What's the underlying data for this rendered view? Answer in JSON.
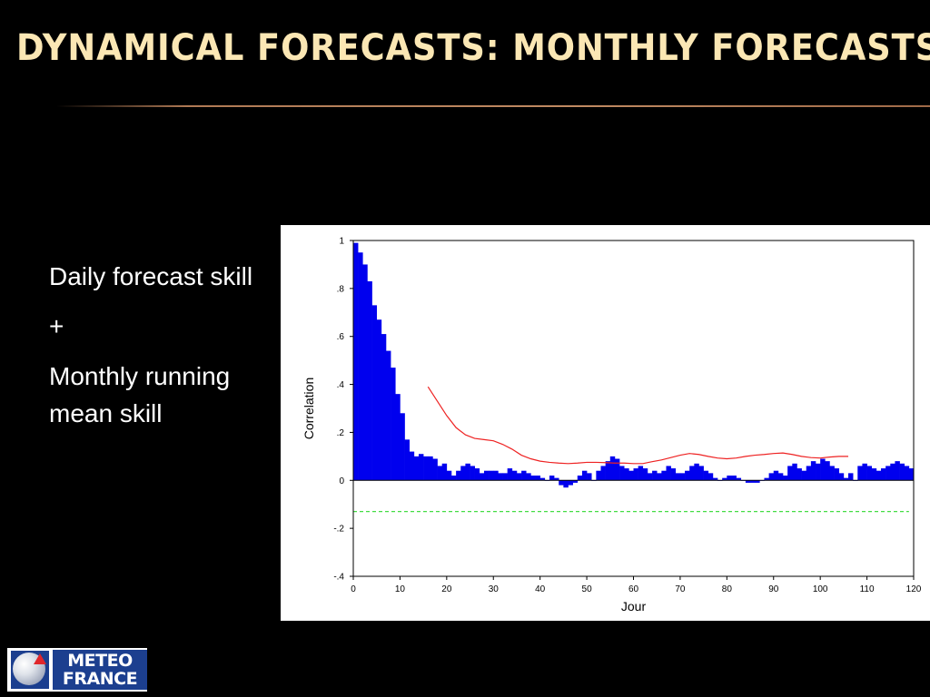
{
  "slide": {
    "title": "Dynamical forecasts: monthly forecasts",
    "bullets": [
      "Daily forecast skill",
      "+",
      "Monthly running mean skill"
    ]
  },
  "logo": {
    "line1": "METEO",
    "line2": "FRANCE",
    "colors": {
      "blue": "#1c3f8f",
      "red": "#e0262b"
    }
  },
  "chart_data": {
    "type": "bar",
    "xlabel": "Jour",
    "ylabel": "Correlation",
    "xlim": [
      0,
      120
    ],
    "ylim": [
      -0.4,
      1
    ],
    "xticks": [
      0,
      10,
      20,
      30,
      40,
      50,
      60,
      70,
      80,
      90,
      100,
      110,
      120
    ],
    "xtick_labels": [
      "0",
      "10",
      "20",
      "30",
      "40",
      "50",
      "60",
      "70",
      "80",
      "90",
      "100",
      "110",
      "120"
    ],
    "yticks": [
      -0.4,
      -0.2,
      0,
      0.2,
      0.4,
      0.6,
      0.8,
      1
    ],
    "ytick_labels": [
      "-.4",
      "-.2",
      "0",
      ".2",
      ".4",
      ".6",
      ".8",
      "1"
    ],
    "grid": false,
    "series": [
      {
        "type": "bar",
        "color": "#0000ee",
        "x": [
          1,
          2,
          3,
          4,
          5,
          6,
          7,
          8,
          9,
          10,
          11,
          12,
          13,
          14,
          15,
          16,
          17,
          18,
          19,
          20,
          21,
          22,
          23,
          24,
          25,
          26,
          27,
          28,
          29,
          30,
          31,
          32,
          33,
          34,
          35,
          36,
          37,
          38,
          39,
          40,
          41,
          42,
          43,
          44,
          45,
          46,
          47,
          48,
          49,
          50,
          51,
          52,
          53,
          54,
          55,
          56,
          57,
          58,
          59,
          60,
          61,
          62,
          63,
          64,
          65,
          66,
          67,
          68,
          69,
          70,
          71,
          72,
          73,
          74,
          75,
          76,
          77,
          78,
          79,
          80,
          81,
          82,
          83,
          84,
          85,
          86,
          87,
          88,
          89,
          90,
          91,
          92,
          93,
          94,
          95,
          96,
          97,
          98,
          99,
          100,
          101,
          102,
          103,
          104,
          105,
          106,
          107,
          108,
          109,
          110,
          111,
          112,
          113,
          114,
          115,
          116,
          117,
          118,
          119,
          120
        ],
        "values": [
          0.99,
          0.95,
          0.9,
          0.83,
          0.73,
          0.67,
          0.61,
          0.54,
          0.47,
          0.36,
          0.28,
          0.17,
          0.12,
          0.1,
          0.11,
          0.1,
          0.1,
          0.09,
          0.06,
          0.07,
          0.04,
          0.02,
          0.04,
          0.06,
          0.07,
          0.06,
          0.05,
          0.03,
          0.04,
          0.04,
          0.04,
          0.03,
          0.03,
          0.05,
          0.04,
          0.03,
          0.04,
          0.03,
          0.02,
          0.02,
          0.01,
          0.0,
          0.02,
          0.01,
          -0.02,
          -0.03,
          -0.02,
          -0.01,
          0.02,
          0.04,
          0.03,
          0.0,
          0.04,
          0.06,
          0.08,
          0.1,
          0.09,
          0.06,
          0.05,
          0.04,
          0.05,
          0.06,
          0.05,
          0.03,
          0.04,
          0.03,
          0.04,
          0.06,
          0.05,
          0.03,
          0.03,
          0.04,
          0.06,
          0.07,
          0.06,
          0.04,
          0.03,
          0.01,
          0.0,
          0.01,
          0.02,
          0.02,
          0.01,
          0.0,
          -0.01,
          -0.01,
          -0.01,
          0.0,
          0.01,
          0.03,
          0.04,
          0.03,
          0.02,
          0.06,
          0.07,
          0.05,
          0.04,
          0.06,
          0.08,
          0.07,
          0.09,
          0.08,
          0.06,
          0.05,
          0.03,
          0.01,
          0.03,
          0.0,
          0.06,
          0.07,
          0.06,
          0.05,
          0.04,
          0.05,
          0.06,
          0.07,
          0.08,
          0.07,
          0.06,
          0.05
        ]
      },
      {
        "type": "line",
        "color": "#ee2222",
        "x": [
          16,
          18,
          20,
          22,
          24,
          26,
          28,
          30,
          32,
          34,
          36,
          38,
          40,
          42,
          44,
          46,
          48,
          50,
          52,
          54,
          56,
          58,
          60,
          62,
          64,
          66,
          68,
          70,
          72,
          74,
          76,
          78,
          80,
          82,
          84,
          86,
          88,
          90,
          92,
          94,
          96,
          98,
          100,
          102,
          104,
          106
        ],
        "values": [
          0.39,
          0.33,
          0.27,
          0.22,
          0.19,
          0.175,
          0.17,
          0.165,
          0.15,
          0.13,
          0.105,
          0.09,
          0.08,
          0.075,
          0.072,
          0.07,
          0.072,
          0.075,
          0.075,
          0.074,
          0.072,
          0.072,
          0.07,
          0.07,
          0.078,
          0.085,
          0.095,
          0.105,
          0.112,
          0.108,
          0.1,
          0.093,
          0.09,
          0.093,
          0.1,
          0.105,
          0.108,
          0.112,
          0.114,
          0.108,
          0.1,
          0.095,
          0.093,
          0.097,
          0.1,
          0.1
        ]
      },
      {
        "type": "line",
        "style": "dashed",
        "color": "#44dd44",
        "x": [
          0,
          119
        ],
        "values": [
          -0.13,
          -0.13
        ]
      }
    ]
  }
}
